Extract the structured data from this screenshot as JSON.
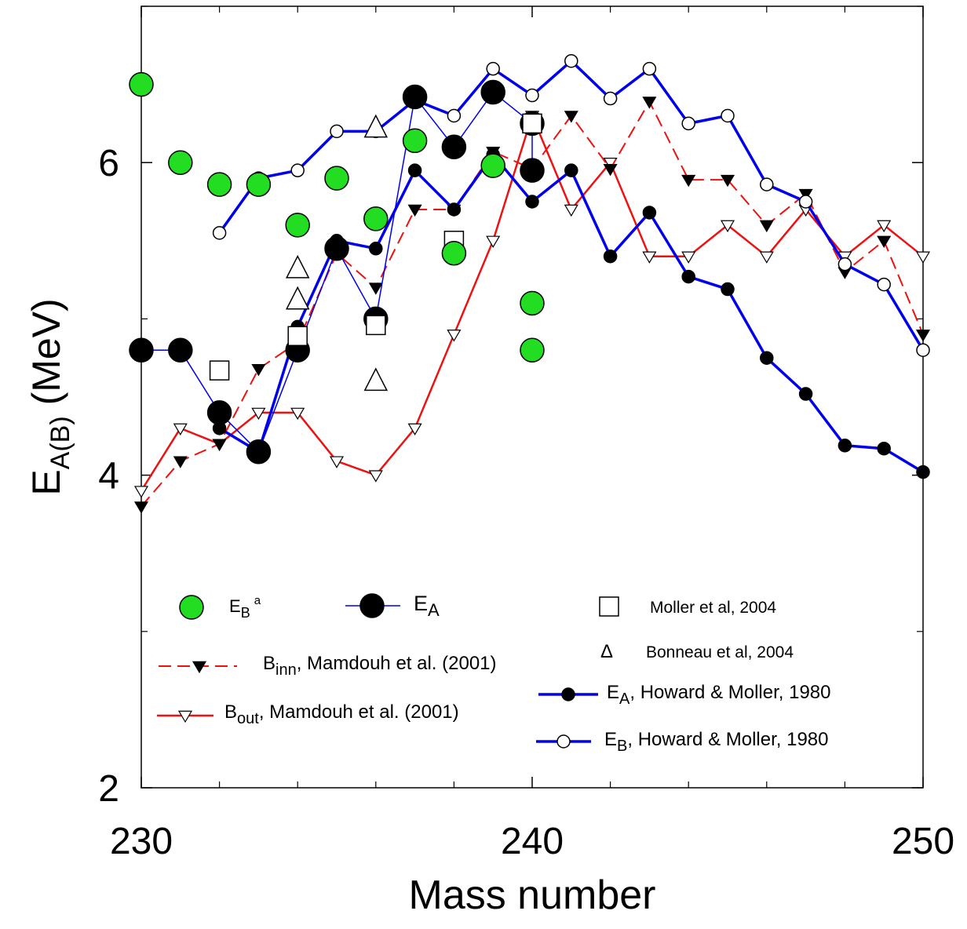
{
  "chart_data": {
    "type": "scatter",
    "xlabel": "Mass number",
    "ylabel_main": "E",
    "ylabel_sub": "A(B)",
    "ylabel_unit": " (MeV)",
    "xlim": [
      230,
      250
    ],
    "ylim": [
      2,
      7
    ],
    "x_ticks": [
      230,
      240,
      250
    ],
    "y_ticks": [
      2,
      4,
      6
    ],
    "minor_x_step": 2,
    "minor_y_step": 1,
    "series": [
      {
        "key": "eb_exp",
        "legend_main": "E",
        "legend_sub": "B",
        "legend_sup": "a",
        "marker": "circle",
        "marker_size": 15,
        "fill": "#22dd22",
        "stroke": "#000000",
        "line": null,
        "points": [
          [
            230,
            6.5
          ],
          [
            231,
            6.0
          ],
          [
            232,
            5.86
          ],
          [
            233,
            5.86
          ],
          [
            234,
            5.6
          ],
          [
            235,
            5.9
          ],
          [
            236,
            5.64
          ],
          [
            237,
            6.14
          ],
          [
            238,
            5.42
          ],
          [
            239,
            5.98
          ],
          [
            240,
            5.1
          ],
          [
            240,
            4.8
          ]
        ]
      },
      {
        "key": "ea_exp",
        "legend_main": "E",
        "legend_sub": "A",
        "legend_sup": "",
        "marker": "circle",
        "marker_size": 15,
        "fill": "#000000",
        "stroke": "#000000",
        "line": {
          "color": "#0000ee",
          "width": 1.5,
          "dash": ""
        },
        "points": [
          [
            230,
            4.8
          ],
          [
            231,
            4.8
          ],
          [
            232,
            4.4
          ],
          [
            233,
            4.15
          ],
          [
            234,
            4.8
          ],
          [
            235,
            5.45
          ],
          [
            236,
            5.0
          ],
          [
            237,
            6.42
          ],
          [
            238,
            6.1
          ],
          [
            239,
            6.45
          ],
          [
            240,
            6.25
          ],
          [
            240,
            5.95
          ]
        ]
      },
      {
        "key": "moller",
        "legend_text": "Moller et al, 2004",
        "marker": "square",
        "marker_size": 12,
        "fill": "#ffffff",
        "stroke": "#000000",
        "line": null,
        "points": [
          [
            232,
            4.67
          ],
          [
            234,
            4.89
          ],
          [
            236,
            4.96
          ],
          [
            238,
            5.5
          ],
          [
            240,
            6.25
          ]
        ]
      },
      {
        "key": "bonneau",
        "legend_text": "Bonneau et al, 2004",
        "legend_symbol": "Δ",
        "marker": "triangle-up",
        "marker_size": 14,
        "fill": "#ffffff",
        "stroke": "#000000",
        "line": null,
        "points": [
          [
            234,
            5.32
          ],
          [
            234,
            5.12
          ],
          [
            236,
            4.6
          ],
          [
            236,
            6.22
          ]
        ]
      },
      {
        "key": "b_inn",
        "legend_main": "B",
        "legend_sub": "inn",
        "legend_text": ", Mamdouh et al. (2001)",
        "marker": "triangle-down",
        "marker_size": 8,
        "fill": "#000000",
        "stroke": "#000000",
        "line": {
          "color": "#ee1111",
          "width": 2,
          "dash": "16,8"
        },
        "points": [
          [
            230,
            3.8
          ],
          [
            231,
            4.09
          ],
          [
            232,
            4.2
          ],
          [
            233,
            4.68
          ],
          [
            234,
            4.85
          ],
          [
            235,
            5.42
          ],
          [
            236,
            5.2
          ],
          [
            237,
            5.7
          ],
          [
            238,
            5.7
          ],
          [
            239,
            6.07
          ],
          [
            240,
            5.96
          ],
          [
            241,
            6.3
          ],
          [
            242,
            5.96
          ],
          [
            243,
            6.39
          ],
          [
            244,
            5.89
          ],
          [
            245,
            5.89
          ],
          [
            246,
            5.6
          ],
          [
            247,
            5.8
          ],
          [
            248,
            5.3
          ],
          [
            249,
            5.5
          ],
          [
            250,
            4.9
          ]
        ]
      },
      {
        "key": "b_out",
        "legend_main": "B",
        "legend_sub": "out",
        "legend_text": ", Mamdouh et al. (2001)",
        "marker": "triangle-down",
        "marker_size": 8,
        "fill": "#ffffff",
        "stroke": "#000000",
        "line": {
          "color": "#ee1111",
          "width": 2.5,
          "dash": ""
        },
        "points": [
          [
            230,
            3.9
          ],
          [
            231,
            4.3
          ],
          [
            232,
            4.2
          ],
          [
            233,
            4.4
          ],
          [
            234,
            4.4
          ],
          [
            235,
            4.09
          ],
          [
            236,
            4.0
          ],
          [
            237,
            4.3
          ],
          [
            238,
            4.9
          ],
          [
            239,
            5.5
          ],
          [
            240,
            6.3
          ],
          [
            241,
            5.7
          ],
          [
            242,
            6.0
          ],
          [
            243,
            5.4
          ],
          [
            244,
            5.4
          ],
          [
            245,
            5.6
          ],
          [
            246,
            5.4
          ],
          [
            247,
            5.7
          ],
          [
            248,
            5.4
          ],
          [
            249,
            5.6
          ],
          [
            250,
            5.4
          ]
        ]
      },
      {
        "key": "ea_hm",
        "legend_main": "E",
        "legend_sub": "A",
        "legend_text": ", Howard & Moller, 1980",
        "marker": "circle",
        "marker_size": 8,
        "fill": "#000000",
        "stroke": "#000000",
        "line": {
          "color": "#0000ee",
          "width": 3.5,
          "dash": ""
        },
        "points": [
          [
            232,
            4.3
          ],
          [
            233,
            4.15
          ],
          [
            234,
            4.95
          ],
          [
            235,
            5.5
          ],
          [
            236,
            5.45
          ],
          [
            237,
            5.95
          ],
          [
            238,
            5.7
          ],
          [
            239,
            6.05
          ],
          [
            240,
            5.75
          ],
          [
            241,
            5.95
          ],
          [
            242,
            5.4
          ],
          [
            243,
            5.68
          ],
          [
            244,
            5.27
          ],
          [
            245,
            5.19
          ],
          [
            246,
            4.75
          ],
          [
            247,
            4.52
          ],
          [
            248,
            4.19
          ],
          [
            249,
            4.17
          ],
          [
            250,
            4.02
          ]
        ]
      },
      {
        "key": "eb_hm",
        "legend_main": "E",
        "legend_sub": "B",
        "legend_text": ", Howard & Moller, 1980",
        "marker": "circle",
        "marker_size": 8,
        "fill": "#ffffff",
        "stroke": "#000000",
        "line": {
          "color": "#0000ee",
          "width": 3.5,
          "dash": ""
        },
        "points": [
          [
            232,
            5.55
          ],
          [
            233,
            5.9
          ],
          [
            234,
            5.95
          ],
          [
            235,
            6.2
          ],
          [
            236,
            6.2
          ],
          [
            237,
            6.4
          ],
          [
            238,
            6.3
          ],
          [
            239,
            6.6
          ],
          [
            240,
            6.43
          ],
          [
            241,
            6.65
          ],
          [
            242,
            6.41
          ],
          [
            243,
            6.6
          ],
          [
            244,
            6.25
          ],
          [
            245,
            6.3
          ],
          [
            246,
            5.86
          ],
          [
            247,
            5.75
          ],
          [
            248,
            5.35
          ],
          [
            249,
            5.22
          ],
          [
            250,
            4.8
          ]
        ]
      }
    ]
  }
}
